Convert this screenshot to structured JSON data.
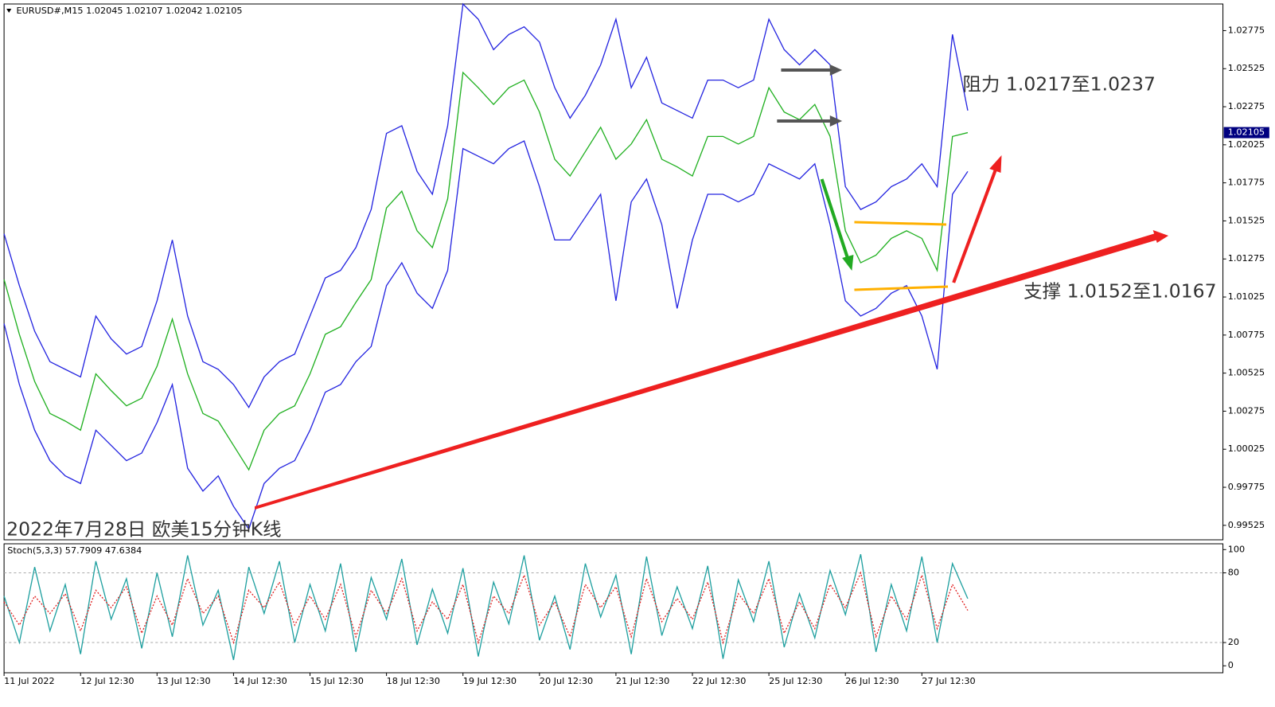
{
  "chart_data": [
    {
      "type": "line",
      "title": "EURUSD#,M15  1.02045 1.02107 1.02042 1.02105",
      "annotations": [
        "阻力 1.0217至1.0237",
        "支撑 1.0152至1.0167",
        "2022年7月28日 欧美15分钟K线"
      ],
      "categories": [
        "11 Jul 2022",
        null,
        null,
        null,
        null,
        "12 Jul 12:30",
        null,
        null,
        null,
        null,
        "13 Jul 12:30",
        null,
        null,
        null,
        null,
        "14 Jul 12:30",
        null,
        null,
        null,
        null,
        "15 Jul 12:30",
        null,
        null,
        null,
        null,
        "18 Jul 12:30",
        null,
        null,
        null,
        null,
        "19 Jul 12:30",
        null,
        null,
        null,
        null,
        "20 Jul 12:30",
        null,
        null,
        null,
        null,
        "21 Jul 12:30",
        null,
        null,
        null,
        null,
        "22 Jul 12:30",
        null,
        null,
        null,
        null,
        "25 Jul 12:30",
        null,
        null,
        null,
        null,
        "26 Jul 12:30",
        null,
        null,
        null,
        null,
        "27 Jul 12:30",
        null,
        null,
        null
      ],
      "series": [
        {
          "color": "#2424e0",
          "values": [
            1.0144,
            1.011,
            1.008,
            1.006,
            1.0055,
            1.005,
            1.009,
            1.0075,
            1.0065,
            1.007,
            1.01,
            1.014,
            1.009,
            1.006,
            1.0055,
            1.0045,
            1.003,
            1.005,
            1.006,
            1.0065,
            1.009,
            1.0115,
            1.012,
            1.0135,
            1.016,
            1.021,
            1.0215,
            1.0185,
            1.017,
            1.0215,
            1.0295,
            1.0285,
            1.0265,
            1.0275,
            1.028,
            1.027,
            1.024,
            1.022,
            1.0235,
            1.0255,
            1.0285,
            1.024,
            1.026,
            1.023,
            1.0225,
            1.022,
            1.0245,
            1.0245,
            1.024,
            1.0245,
            1.0285,
            1.0265,
            1.0255,
            1.0265,
            1.0255,
            1.0175,
            1.016,
            1.0165,
            1.0175,
            1.018,
            1.019,
            1.0175,
            1.0275,
            1.0225
          ]
        },
        {
          "color": "#20b020",
          "values": [
            1.0114,
            1.0078,
            1.0047,
            1.0026,
            1.0021,
            1.0015,
            1.0052,
            1.0041,
            1.0031,
            1.0036,
            1.0057,
            1.0088,
            1.0052,
            1.0026,
            1.0021,
            1.0005,
            0.9989,
            1.0015,
            1.0026,
            1.0031,
            1.0052,
            1.0078,
            1.0083,
            1.0099,
            1.0114,
            1.0161,
            1.0172,
            1.0146,
            1.0135,
            1.0167,
            1.025,
            1.024,
            1.0229,
            1.024,
            1.0245,
            1.0224,
            1.0193,
            1.0182,
            1.0198,
            1.0214,
            1.0193,
            1.0203,
            1.0219,
            1.0193,
            1.0188,
            1.0182,
            1.0208,
            1.0208,
            1.0203,
            1.0208,
            1.024,
            1.0224,
            1.0219,
            1.0229,
            1.0208,
            1.0146,
            1.0125,
            1.013,
            1.0141,
            1.0146,
            1.0141,
            1.012,
            1.0208,
            1.02105
          ]
        },
        {
          "color": "#2424e0",
          "values": [
            1.0085,
            1.0045,
            1.0015,
            0.9995,
            0.9985,
            0.998,
            1.0015,
            1.0005,
            0.9995,
            1.0,
            1.002,
            1.0045,
            0.999,
            0.9975,
            0.9985,
            0.9965,
            0.995,
            0.998,
            0.999,
            0.9995,
            1.0015,
            1.004,
            1.0045,
            1.006,
            1.007,
            1.011,
            1.0125,
            1.0105,
            1.0095,
            1.012,
            1.02,
            1.0195,
            1.019,
            1.02,
            1.0205,
            1.0175,
            1.014,
            1.014,
            1.0155,
            1.017,
            1.01,
            1.0165,
            1.018,
            1.015,
            1.0095,
            1.014,
            1.017,
            1.017,
            1.0165,
            1.017,
            1.019,
            1.0185,
            1.018,
            1.019,
            1.015,
            1.01,
            1.009,
            1.0095,
            1.0105,
            1.011,
            1.009,
            1.0055,
            1.017,
            1.0185
          ]
        }
      ],
      "last_price": 1.02105,
      "ylim": [
        0.9943,
        1.0295
      ],
      "yticks": [
        0.99525,
        0.99775,
        1.00025,
        1.00275,
        1.00525,
        1.00775,
        1.01025,
        1.01275,
        1.01525,
        1.01775,
        1.02025,
        1.02275,
        1.02525,
        1.02775
      ]
    },
    {
      "type": "line",
      "title": "Stoch(5,3,3) 57.7909 47.6384",
      "series": [
        {
          "color": "#20a0a0",
          "values": [
            60,
            20,
            85,
            30,
            70,
            10,
            90,
            40,
            75,
            15,
            80,
            25,
            95,
            35,
            65,
            5,
            85,
            45,
            90,
            20,
            70,
            30,
            88,
            12,
            76,
            40,
            92,
            18,
            66,
            28,
            84,
            8,
            72,
            36,
            95,
            22,
            60,
            14,
            88,
            42,
            78,
            10,
            94,
            26,
            68,
            32,
            86,
            6,
            74,
            38,
            90,
            16,
            62,
            24,
            82,
            44,
            96,
            12,
            70,
            30,
            94,
            20,
            88,
            57.7909
          ]
        },
        {
          "color": "#e02020",
          "dashed": true,
          "values": [
            55,
            35,
            60,
            45,
            62,
            30,
            65,
            50,
            68,
            28,
            60,
            35,
            75,
            45,
            60,
            20,
            65,
            50,
            72,
            35,
            60,
            40,
            70,
            25,
            65,
            45,
            75,
            30,
            55,
            40,
            70,
            20,
            60,
            45,
            78,
            35,
            55,
            25,
            70,
            50,
            68,
            25,
            75,
            38,
            58,
            40,
            72,
            20,
            62,
            45,
            75,
            28,
            55,
            32,
            70,
            50,
            80,
            25,
            60,
            40,
            78,
            32,
            70,
            47.6384
          ]
        }
      ],
      "ylim": [
        -6,
        105
      ],
      "yticks": [
        0,
        20,
        80,
        100
      ]
    }
  ]
}
